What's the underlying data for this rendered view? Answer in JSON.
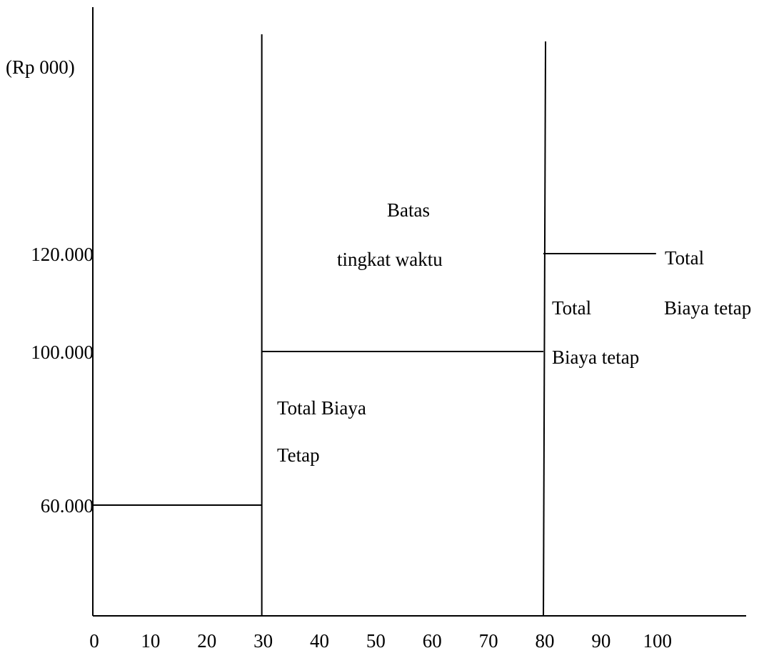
{
  "chart_data": {
    "type": "line",
    "title": "",
    "xlabel": "",
    "ylabel": "(Rp 000)",
    "x_ticks": [
      0,
      10,
      20,
      30,
      40,
      50,
      60,
      70,
      80,
      90,
      100
    ],
    "xlim": [
      0,
      116
    ],
    "y_ticks": [
      {
        "value": 60000,
        "label": "60.000"
      },
      {
        "value": 100000,
        "label": "100.000"
      },
      {
        "value": 120000,
        "label": "120.000"
      }
    ],
    "series": [
      {
        "segments": [
          {
            "x": [
              0,
              30
            ],
            "y": [
              60000,
              60000
            ]
          }
        ]
      },
      {
        "segments": [
          {
            "x": [
              30,
              80
            ],
            "y": [
              100000,
              100000
            ]
          }
        ]
      },
      {
        "segments": [
          {
            "x": [
              80,
              100
            ],
            "y": [
              120000,
              120000
            ]
          }
        ]
      }
    ],
    "boundaries": [
      30,
      80
    ],
    "annotations": [
      {
        "lines": [
          "Batas",
          "tingkat waktu"
        ]
      },
      {
        "lines": [
          "Total Biaya",
          "Tetap"
        ]
      },
      {
        "lines": [
          "Total",
          "Biaya tetap"
        ]
      },
      {
        "lines": [
          "Total",
          "Biaya tetap"
        ]
      }
    ],
    "grid": false,
    "legend": "none"
  }
}
